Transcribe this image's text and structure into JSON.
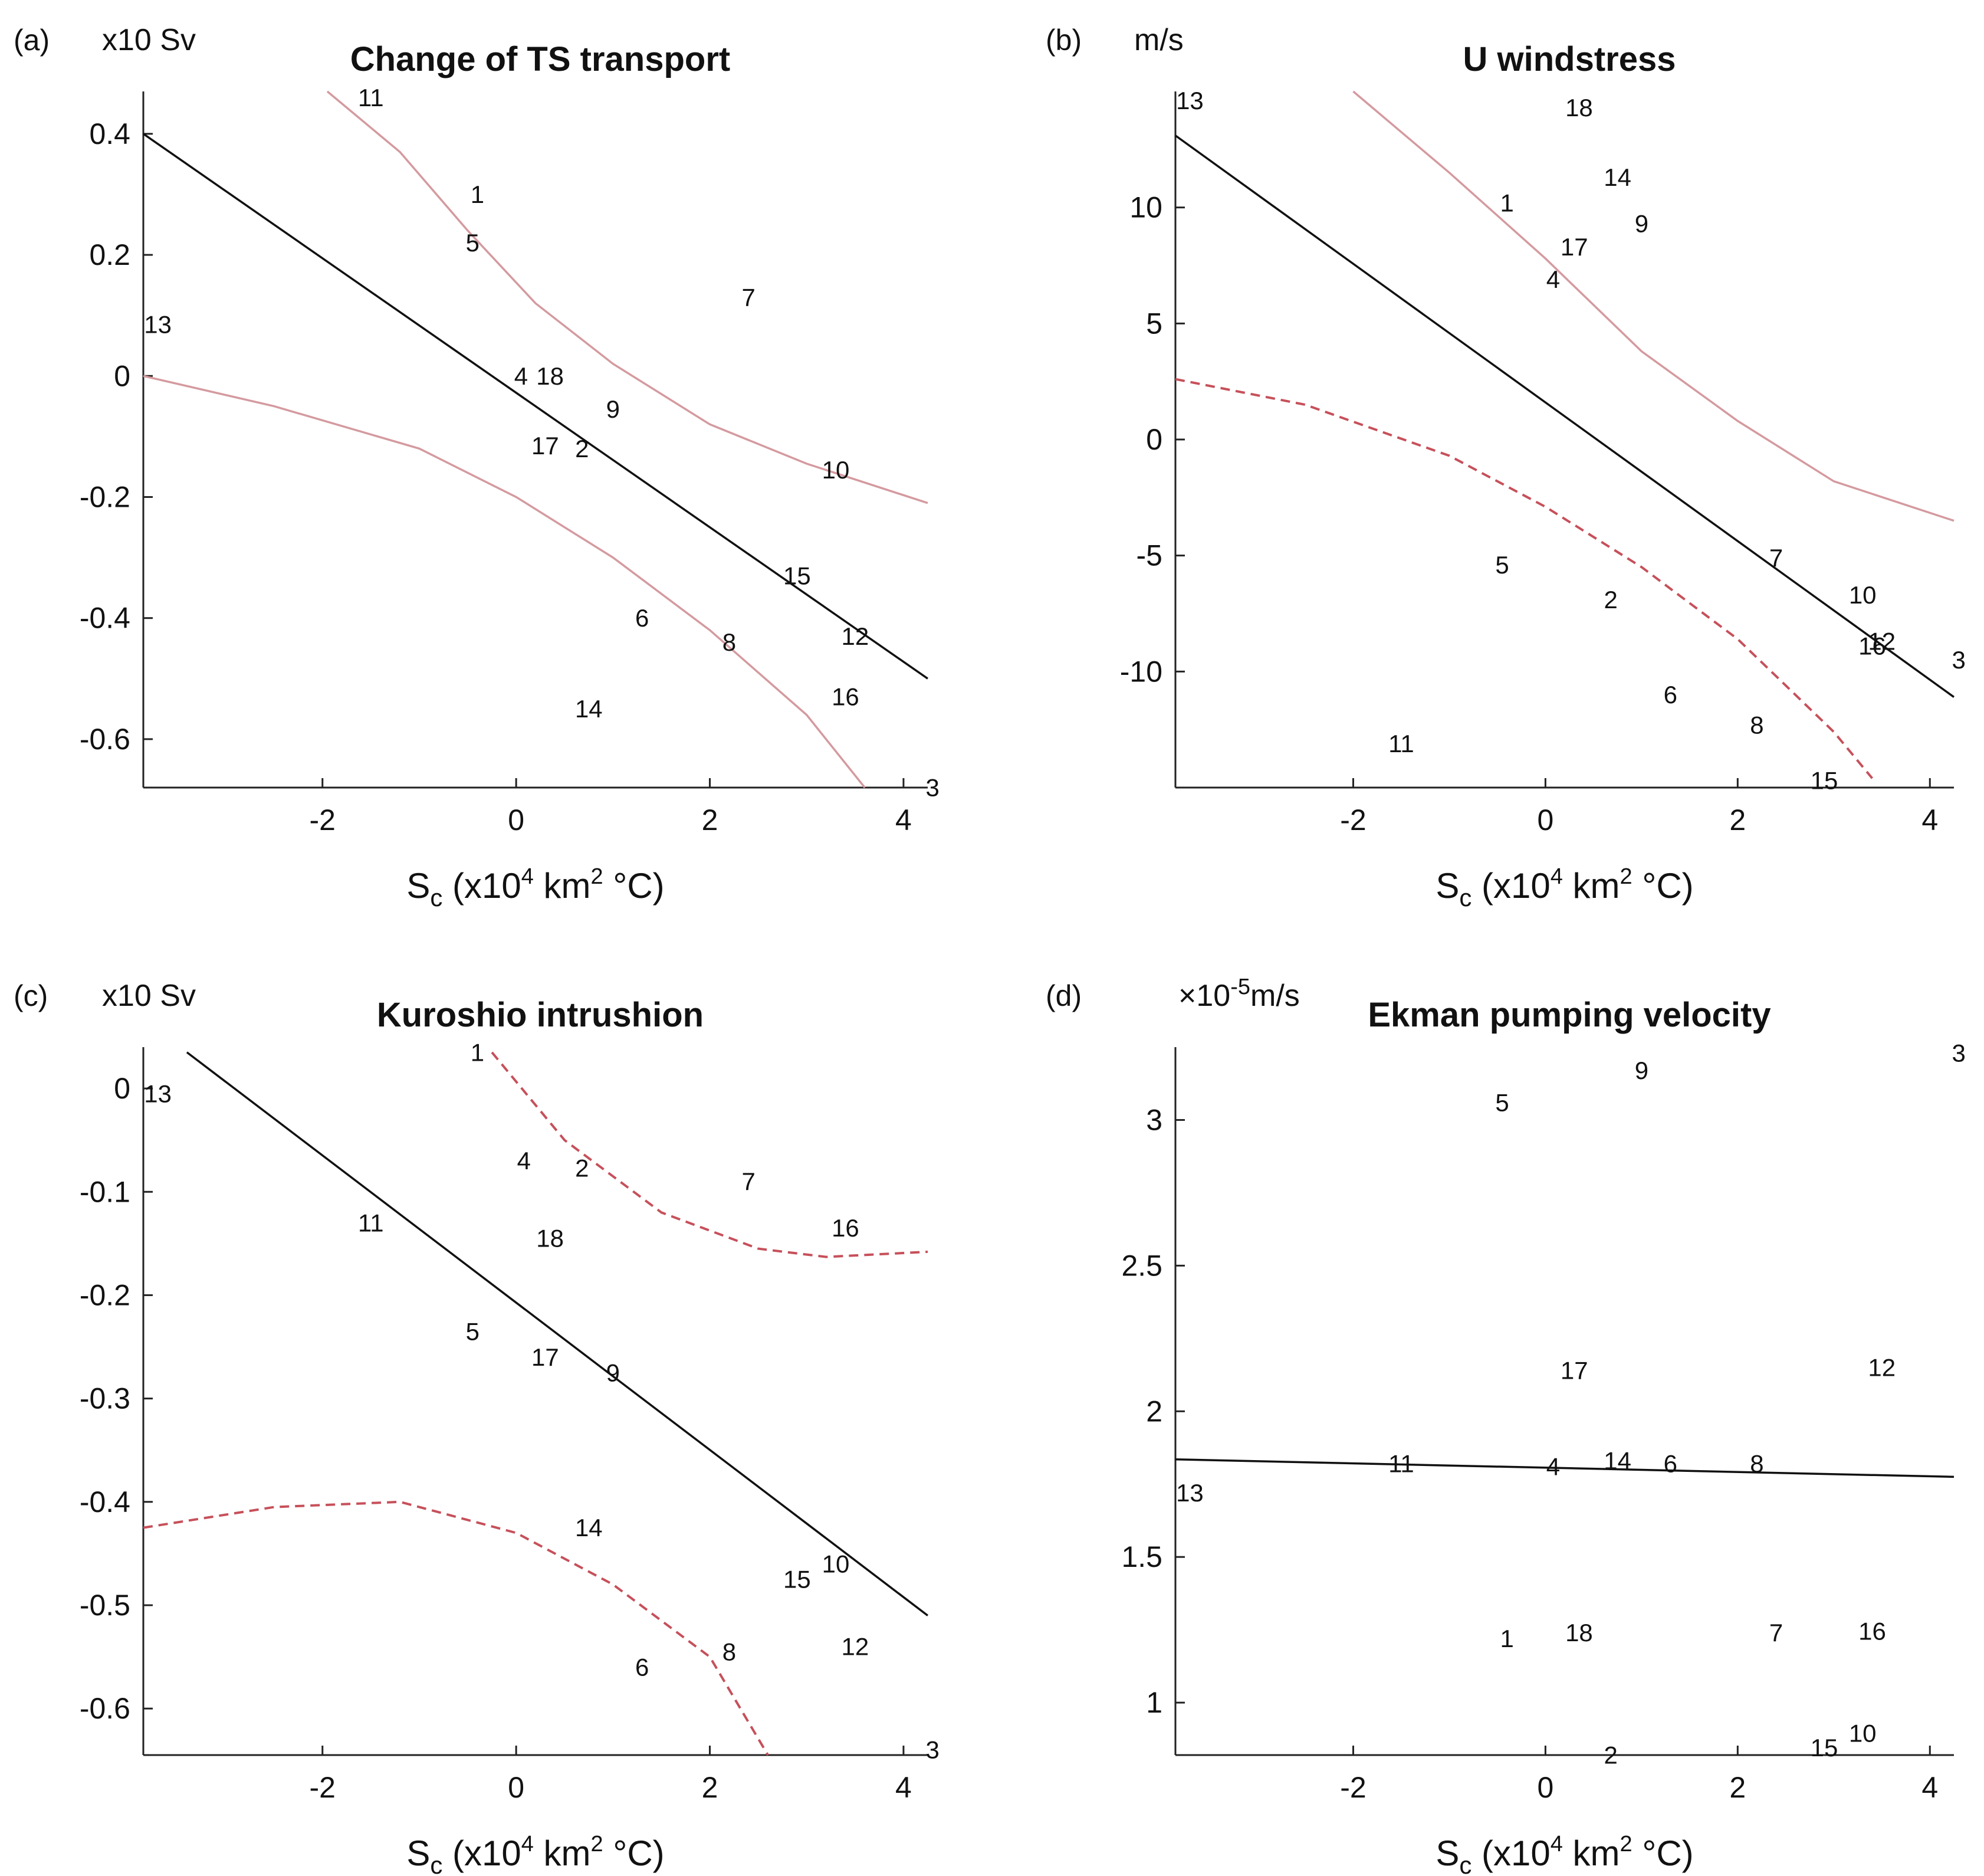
{
  "figure": {
    "xlabel_main": "S",
    "xlabel_sub": "c",
    "xlabel_open": " (x10",
    "xlabel_exp": "4",
    "xlabel_mid": " km",
    "xlabel_exp2": "2",
    "xlabel_end": " °C)"
  },
  "chart_data": [
    {
      "type": "scatter",
      "letter": "(a)",
      "title": "Change of TS transport",
      "unit": "x10 Sv",
      "xlim": [
        -3.85,
        4.25
      ],
      "ylim": [
        -0.68,
        0.47
      ],
      "xticks": [
        -2,
        0,
        2,
        4
      ],
      "yticks": [
        0.4,
        0.2,
        0,
        -0.2,
        -0.4,
        -0.6
      ],
      "ytick_labels": [
        "0.4",
        "0.2",
        "0",
        "-0.2",
        "-0.4",
        "-0.6"
      ],
      "points": [
        {
          "label": "1",
          "x": -0.4,
          "y": 0.3
        },
        {
          "label": "2",
          "x": 0.68,
          "y": -0.12
        },
        {
          "label": "3",
          "x": 4.3,
          "y": -0.68
        },
        {
          "label": "4",
          "x": 0.05,
          "y": 0.0
        },
        {
          "label": "5",
          "x": -0.45,
          "y": 0.22
        },
        {
          "label": "6",
          "x": 1.3,
          "y": -0.4
        },
        {
          "label": "7",
          "x": 2.4,
          "y": 0.13
        },
        {
          "label": "8",
          "x": 2.2,
          "y": -0.44
        },
        {
          "label": "9",
          "x": 1.0,
          "y": -0.055
        },
        {
          "label": "10",
          "x": 3.3,
          "y": -0.155
        },
        {
          "label": "11",
          "x": -1.5,
          "y": 0.46
        },
        {
          "label": "12",
          "x": 3.5,
          "y": -0.43
        },
        {
          "label": "13",
          "x": -3.7,
          "y": 0.085
        },
        {
          "label": "14",
          "x": 0.75,
          "y": -0.55
        },
        {
          "label": "15",
          "x": 2.9,
          "y": -0.33
        },
        {
          "label": "16",
          "x": 3.4,
          "y": -0.53
        },
        {
          "label": "17",
          "x": 0.3,
          "y": -0.115
        },
        {
          "label": "18",
          "x": 0.35,
          "y": 0.0
        }
      ],
      "fit_line": [
        [
          -3.85,
          0.4
        ],
        [
          4.25,
          -0.5
        ]
      ],
      "upper_band": [
        [
          -1.95,
          0.47
        ],
        [
          -1.2,
          0.37
        ],
        [
          -0.5,
          0.24
        ],
        [
          0.2,
          0.12
        ],
        [
          1.0,
          0.02
        ],
        [
          2.0,
          -0.08
        ],
        [
          3.0,
          -0.145
        ],
        [
          4.25,
          -0.21
        ]
      ],
      "lower_band": [
        [
          -3.85,
          0.0
        ],
        [
          -2.5,
          -0.05
        ],
        [
          -1.0,
          -0.12
        ],
        [
          0.0,
          -0.2
        ],
        [
          1.0,
          -0.3
        ],
        [
          2.0,
          -0.42
        ],
        [
          3.0,
          -0.56
        ],
        [
          3.6,
          -0.68
        ]
      ],
      "upper_dashed": false,
      "lower_dashed": false
    },
    {
      "type": "scatter",
      "letter": "(b)",
      "title": "U windstress",
      "unit": "m/s",
      "xlim": [
        -3.85,
        4.25
      ],
      "ylim": [
        -15.0,
        15.0
      ],
      "xticks": [
        -2,
        0,
        2,
        4
      ],
      "yticks": [
        10,
        5,
        0,
        -5,
        -10
      ],
      "ytick_labels": [
        "10",
        "5",
        "0",
        "-5",
        "-10"
      ],
      "points": [
        {
          "label": "1",
          "x": -0.4,
          "y": 10.2
        },
        {
          "label": "2",
          "x": 0.68,
          "y": -6.9
        },
        {
          "label": "3",
          "x": 4.3,
          "y": -9.5
        },
        {
          "label": "4",
          "x": 0.08,
          "y": 6.9
        },
        {
          "label": "5",
          "x": -0.45,
          "y": -5.4
        },
        {
          "label": "6",
          "x": 1.3,
          "y": -11.0
        },
        {
          "label": "7",
          "x": 2.4,
          "y": -5.1
        },
        {
          "label": "8",
          "x": 2.2,
          "y": -12.3
        },
        {
          "label": "9",
          "x": 1.0,
          "y": 9.3
        },
        {
          "label": "10",
          "x": 3.3,
          "y": -6.7
        },
        {
          "label": "11",
          "x": -1.5,
          "y": -13.1
        },
        {
          "label": "12",
          "x": 3.5,
          "y": -8.7
        },
        {
          "label": "13",
          "x": -3.7,
          "y": 14.6
        },
        {
          "label": "14",
          "x": 0.75,
          "y": 11.3
        },
        {
          "label": "15",
          "x": 2.9,
          "y": -14.7
        },
        {
          "label": "16",
          "x": 3.4,
          "y": -8.9
        },
        {
          "label": "17",
          "x": 0.3,
          "y": 8.3
        },
        {
          "label": "18",
          "x": 0.35,
          "y": 14.3
        }
      ],
      "fit_line": [
        [
          -3.85,
          13.1
        ],
        [
          4.25,
          -11.1
        ]
      ],
      "upper_band": [
        [
          -2.0,
          15.0
        ],
        [
          -1.0,
          11.5
        ],
        [
          0.0,
          7.8
        ],
        [
          1.0,
          3.8
        ],
        [
          2.0,
          0.8
        ],
        [
          3.0,
          -1.8
        ],
        [
          4.25,
          -3.5
        ]
      ],
      "lower_band": [
        [
          -3.85,
          2.6
        ],
        [
          -2.5,
          1.5
        ],
        [
          -1.0,
          -0.7
        ],
        [
          0.0,
          -2.9
        ],
        [
          1.0,
          -5.5
        ],
        [
          2.0,
          -8.6
        ],
        [
          3.0,
          -12.6
        ],
        [
          3.4,
          -14.6
        ]
      ],
      "upper_dashed": false,
      "lower_dashed": true
    },
    {
      "type": "scatter",
      "letter": "(c)",
      "title": "Kuroshio intrushion",
      "unit": "x10 Sv",
      "xlim": [
        -3.85,
        4.25
      ],
      "ylim": [
        -0.645,
        0.04
      ],
      "xticks": [
        -2,
        0,
        2,
        4
      ],
      "yticks": [
        0,
        -0.1,
        -0.2,
        -0.3,
        -0.4,
        -0.5,
        -0.6
      ],
      "ytick_labels": [
        "0",
        "-0.1",
        "-0.2",
        "-0.3",
        "-0.4",
        "-0.5",
        "-0.6"
      ],
      "points": [
        {
          "label": "1",
          "x": -0.4,
          "y": 0.035
        },
        {
          "label": "2",
          "x": 0.68,
          "y": -0.077
        },
        {
          "label": "3",
          "x": 4.3,
          "y": -0.64
        },
        {
          "label": "4",
          "x": 0.08,
          "y": -0.07
        },
        {
          "label": "5",
          "x": -0.45,
          "y": -0.235
        },
        {
          "label": "6",
          "x": 1.3,
          "y": -0.56
        },
        {
          "label": "7",
          "x": 2.4,
          "y": -0.09
        },
        {
          "label": "8",
          "x": 2.2,
          "y": -0.545
        },
        {
          "label": "9",
          "x": 1.0,
          "y": -0.275
        },
        {
          "label": "10",
          "x": 3.3,
          "y": -0.46
        },
        {
          "label": "11",
          "x": -1.5,
          "y": -0.13
        },
        {
          "label": "12",
          "x": 3.5,
          "y": -0.54
        },
        {
          "label": "13",
          "x": -3.7,
          "y": -0.005
        },
        {
          "label": "14",
          "x": 0.75,
          "y": -0.425
        },
        {
          "label": "15",
          "x": 2.9,
          "y": -0.475
        },
        {
          "label": "16",
          "x": 3.4,
          "y": -0.135
        },
        {
          "label": "17",
          "x": 0.3,
          "y": -0.26
        },
        {
          "label": "18",
          "x": 0.35,
          "y": -0.145
        }
      ],
      "fit_line": [
        [
          -3.4,
          0.035
        ],
        [
          4.25,
          -0.51
        ]
      ],
      "upper_band": [
        [
          -0.25,
          0.035
        ],
        [
          0.5,
          -0.05
        ],
        [
          1.5,
          -0.12
        ],
        [
          2.5,
          -0.155
        ],
        [
          3.2,
          -0.163
        ],
        [
          4.25,
          -0.158
        ]
      ],
      "lower_band": [
        [
          -3.85,
          -0.425
        ],
        [
          -2.5,
          -0.405
        ],
        [
          -1.2,
          -0.4
        ],
        [
          0.0,
          -0.43
        ],
        [
          1.0,
          -0.48
        ],
        [
          2.0,
          -0.55
        ],
        [
          2.6,
          -0.645
        ]
      ],
      "upper_dashed": true,
      "lower_dashed": true
    },
    {
      "type": "scatter",
      "letter": "(d)",
      "title": "Ekman pumping velocity",
      "unit_prefix": "×10",
      "unit_exp": "-5",
      "unit_suffix": "m/s",
      "xlim": [
        -3.85,
        4.25
      ],
      "ylim": [
        0.82,
        3.25
      ],
      "xticks": [
        -2,
        0,
        2,
        4
      ],
      "yticks": [
        3,
        2.5,
        2,
        1.5,
        1
      ],
      "ytick_labels": [
        "3",
        "2.5",
        "2",
        "1.5",
        "1"
      ],
      "points": [
        {
          "label": "1",
          "x": -0.4,
          "y": 1.22
        },
        {
          "label": "2",
          "x": 0.68,
          "y": 0.82
        },
        {
          "label": "3",
          "x": 4.3,
          "y": 3.23
        },
        {
          "label": "4",
          "x": 0.08,
          "y": 1.81
        },
        {
          "label": "5",
          "x": -0.45,
          "y": 3.06
        },
        {
          "label": "6",
          "x": 1.3,
          "y": 1.82
        },
        {
          "label": "7",
          "x": 2.4,
          "y": 1.24
        },
        {
          "label": "8",
          "x": 2.2,
          "y": 1.82
        },
        {
          "label": "9",
          "x": 1.0,
          "y": 3.17
        },
        {
          "label": "10",
          "x": 3.3,
          "y": 0.895
        },
        {
          "label": "11",
          "x": -1.5,
          "y": 1.82
        },
        {
          "label": "12",
          "x": 3.5,
          "y": 2.15
        },
        {
          "label": "13",
          "x": -3.7,
          "y": 1.72
        },
        {
          "label": "14",
          "x": 0.75,
          "y": 1.83
        },
        {
          "label": "15",
          "x": 2.9,
          "y": 0.845
        },
        {
          "label": "16",
          "x": 3.4,
          "y": 1.245
        },
        {
          "label": "17",
          "x": 0.3,
          "y": 2.14
        },
        {
          "label": "18",
          "x": 0.35,
          "y": 1.24
        }
      ],
      "fit_line": [
        [
          -3.85,
          1.835
        ],
        [
          4.25,
          1.775
        ]
      ],
      "upper_band": [],
      "lower_band": [],
      "upper_dashed": false,
      "lower_dashed": false
    }
  ]
}
